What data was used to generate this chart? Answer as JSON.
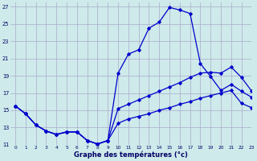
{
  "title": "Graphe des températures (°c)",
  "bg_color": "#ceeaea",
  "grid_color": "#aaaacc",
  "line_color": "#0000cc",
  "xlim": [
    -0.5,
    23
  ],
  "ylim": [
    11,
    27.5
  ],
  "xticks": [
    0,
    1,
    2,
    3,
    4,
    5,
    6,
    7,
    8,
    9,
    10,
    11,
    12,
    13,
    14,
    15,
    16,
    17,
    18,
    19,
    20,
    21,
    22,
    23
  ],
  "yticks": [
    11,
    13,
    15,
    17,
    19,
    21,
    23,
    25,
    27
  ],
  "line1_x": [
    0,
    1,
    2,
    3,
    4,
    5,
    6,
    7,
    8,
    9,
    10,
    11,
    12,
    13,
    14,
    15,
    16,
    17,
    18,
    19,
    20,
    21,
    22,
    23
  ],
  "line1_y": [
    15.5,
    14.6,
    13.3,
    12.6,
    12.2,
    12.5,
    12.5,
    11.5,
    11.1,
    11.5,
    19.3,
    21.5,
    22.0,
    24.5,
    25.2,
    26.9,
    26.6,
    26.2,
    20.4,
    18.9,
    17.3,
    18.0,
    17.2,
    16.5
  ],
  "line2_x": [
    0,
    1,
    2,
    3,
    4,
    5,
    6,
    7,
    8,
    9,
    10,
    11,
    12,
    13,
    14,
    15,
    16,
    17,
    18,
    19,
    20,
    21,
    22,
    23
  ],
  "line2_y": [
    15.5,
    14.6,
    13.3,
    12.6,
    12.2,
    12.5,
    12.5,
    11.5,
    11.1,
    11.5,
    15.2,
    15.7,
    16.2,
    16.7,
    17.2,
    17.7,
    18.2,
    18.8,
    19.3,
    19.4,
    19.3,
    20.0,
    18.8,
    17.2
  ],
  "line3_x": [
    0,
    1,
    2,
    3,
    4,
    5,
    6,
    7,
    8,
    9,
    10,
    11,
    12,
    13,
    14,
    15,
    16,
    17,
    18,
    19,
    20,
    21,
    22,
    23
  ],
  "line3_y": [
    15.5,
    14.6,
    13.3,
    12.6,
    12.2,
    12.5,
    12.5,
    11.5,
    11.1,
    11.5,
    13.5,
    14.0,
    14.3,
    14.6,
    15.0,
    15.3,
    15.7,
    16.0,
    16.4,
    16.7,
    17.0,
    17.3,
    15.8,
    15.3
  ]
}
